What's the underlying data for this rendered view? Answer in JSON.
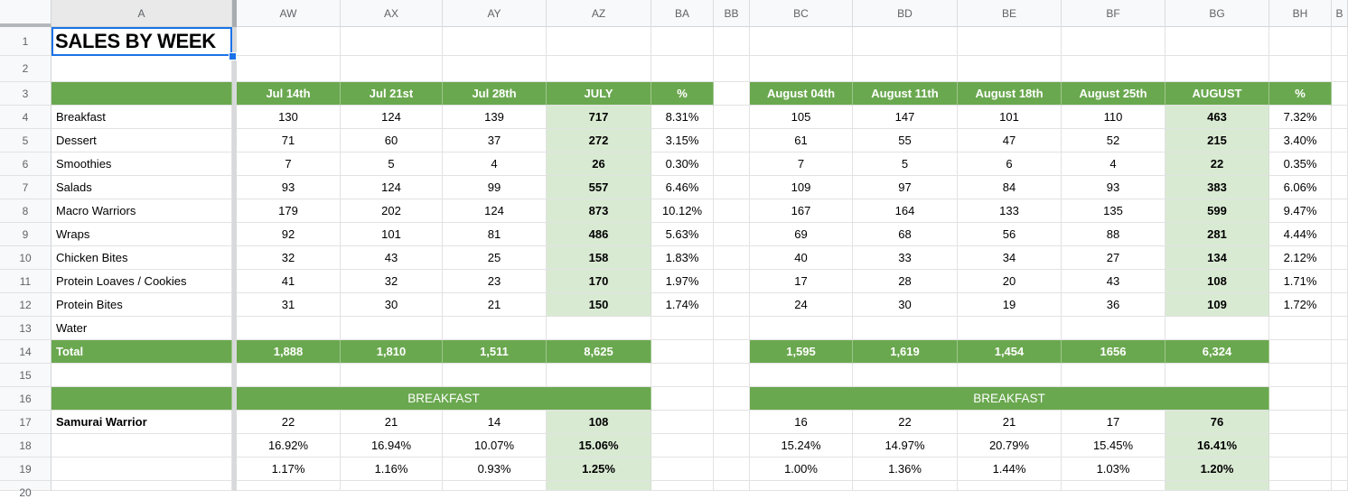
{
  "title_cell": {
    "text": "SALES BY WEEK"
  },
  "colors": {
    "header_green": "#6aa84f",
    "light_green": "#d9ead3",
    "selection_blue": "#1a73e8"
  },
  "column_headers": [
    "A",
    "AW",
    "AX",
    "AY",
    "AZ",
    "BA",
    "BB",
    "BC",
    "BD",
    "BE",
    "BF",
    "BG",
    "BH",
    "B"
  ],
  "row_numbers": [
    "1",
    "2",
    "3",
    "4",
    "5",
    "6",
    "7",
    "8",
    "9",
    "10",
    "11",
    "12",
    "13",
    "14",
    "15",
    "16",
    "17",
    "18",
    "19",
    "20"
  ],
  "sales_table": {
    "july": {
      "week_headers": [
        "Jul 14th",
        "Jul 21st",
        "Jul 28th"
      ],
      "total_header": "JULY",
      "pct_header": "%"
    },
    "august": {
      "week_headers": [
        "August 04th",
        "August 11th",
        "August 18th",
        "August 25th"
      ],
      "total_header": "AUGUST",
      "pct_header": "%"
    },
    "products": [
      {
        "name": "Breakfast",
        "july_weeks": [
          "130",
          "124",
          "139"
        ],
        "july_total": "717",
        "july_pct": "8.31%",
        "august_weeks": [
          "105",
          "147",
          "101",
          "110"
        ],
        "august_total": "463",
        "august_pct": "7.32%"
      },
      {
        "name": "Dessert",
        "july_weeks": [
          "71",
          "60",
          "37"
        ],
        "july_total": "272",
        "july_pct": "3.15%",
        "august_weeks": [
          "61",
          "55",
          "47",
          "52"
        ],
        "august_total": "215",
        "august_pct": "3.40%"
      },
      {
        "name": "Smoothies",
        "july_weeks": [
          "7",
          "5",
          "4"
        ],
        "july_total": "26",
        "july_pct": "0.30%",
        "august_weeks": [
          "7",
          "5",
          "6",
          "4"
        ],
        "august_total": "22",
        "august_pct": "0.35%"
      },
      {
        "name": "Salads",
        "july_weeks": [
          "93",
          "124",
          "99"
        ],
        "july_total": "557",
        "july_pct": "6.46%",
        "august_weeks": [
          "109",
          "97",
          "84",
          "93"
        ],
        "august_total": "383",
        "august_pct": "6.06%"
      },
      {
        "name": "Macro Warriors",
        "july_weeks": [
          "179",
          "202",
          "124"
        ],
        "july_total": "873",
        "july_pct": "10.12%",
        "august_weeks": [
          "167",
          "164",
          "133",
          "135"
        ],
        "august_total": "599",
        "august_pct": "9.47%"
      },
      {
        "name": "Wraps",
        "july_weeks": [
          "92",
          "101",
          "81"
        ],
        "july_total": "486",
        "july_pct": "5.63%",
        "august_weeks": [
          "69",
          "68",
          "56",
          "88"
        ],
        "august_total": "281",
        "august_pct": "4.44%"
      },
      {
        "name": "Chicken Bites",
        "july_weeks": [
          "32",
          "43",
          "25"
        ],
        "july_total": "158",
        "july_pct": "1.83%",
        "august_weeks": [
          "40",
          "33",
          "34",
          "27"
        ],
        "august_total": "134",
        "august_pct": "2.12%"
      },
      {
        "name": "Protein Loaves / Cookies",
        "july_weeks": [
          "41",
          "32",
          "23"
        ],
        "july_total": "170",
        "july_pct": "1.97%",
        "august_weeks": [
          "17",
          "28",
          "20",
          "43"
        ],
        "august_total": "108",
        "august_pct": "1.71%"
      },
      {
        "name": "Protein Bites",
        "july_weeks": [
          "31",
          "30",
          "21"
        ],
        "july_total": "150",
        "july_pct": "1.74%",
        "august_weeks": [
          "24",
          "30",
          "19",
          "36"
        ],
        "august_total": "109",
        "august_pct": "1.72%"
      },
      {
        "name": "Water",
        "july_weeks": [
          "",
          "",
          ""
        ],
        "july_total": "",
        "july_pct": "",
        "august_weeks": [
          "",
          "",
          "",
          ""
        ],
        "august_total": "",
        "august_pct": ""
      }
    ],
    "total_row": {
      "label": "Total",
      "july_weeks": [
        "1,888",
        "1,810",
        "1,511"
      ],
      "july_total": "8,625",
      "august_weeks": [
        "1,595",
        "1,619",
        "1,454",
        "1656"
      ],
      "august_total": "6,324"
    }
  },
  "breakfast_section": {
    "left_header": "BREAKFAST",
    "right_header": "BREAKFAST",
    "item_name": "Samurai Warrior",
    "left_rows": [
      [
        "22",
        "21",
        "14",
        "108"
      ],
      [
        "16.92%",
        "16.94%",
        "10.07%",
        "15.06%"
      ],
      [
        "1.17%",
        "1.16%",
        "0.93%",
        "1.25%"
      ]
    ],
    "right_rows": [
      [
        "16",
        "22",
        "21",
        "17",
        "76"
      ],
      [
        "15.24%",
        "14.97%",
        "20.79%",
        "15.45%",
        "16.41%"
      ],
      [
        "1.00%",
        "1.36%",
        "1.44%",
        "1.03%",
        "1.20%"
      ]
    ]
  }
}
